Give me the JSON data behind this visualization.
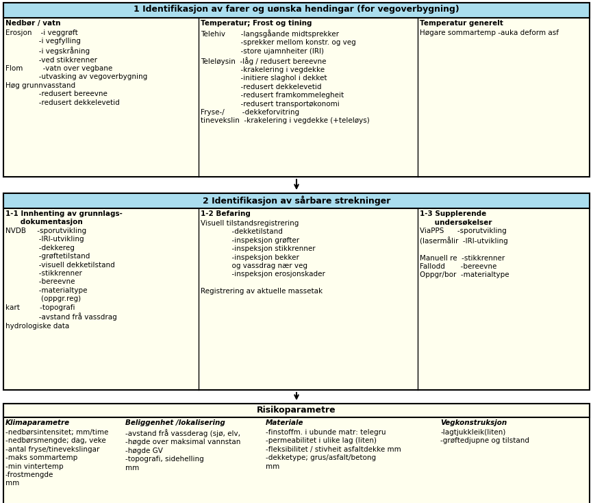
{
  "fig_width": 8.66,
  "fig_height": 7.34,
  "dpi": 100,
  "bg_color": "#ffffff",
  "light_yellow": "#ffffee",
  "light_blue": "#aaddee",
  "border_color": "#000000",
  "section1_title": "1 Identifikasjon av farer og uønska hendingar (for vegoverbygning)",
  "section2_title": "2 Identifikasjon av sårbare strekninger",
  "section3_title": "Risikoparametre",
  "col1_header": "Nedbør / vatn",
  "col1_content": "Erosjon    -i veggrøft\n               -i vegfylling\n               -i vegskråning\n               -ved stikkrenner\nFlom         -vatn over vegbane\n               -utvasking av vegoverbygning\nHøg grunnvasstand\n               -redusert bereevne\n               -redusert dekkelevetid",
  "col2_header": "Temperatur; Frost og tining",
  "col2_content": "Telehiv       -langsgåande midtsprekker\n                  -sprekker mellom konstr. og veg\n                  -store ujamnheiter (IRI)\nTeleløysin  -låg / redusert bereevne\n                  -krakelering i vegdekke\n                  -initiere slaghol i dekket\n                  -redusert dekkelevetid\n                  -redusert framkommelegheit\n                  -redusert transportøkonomi\nFryse-/        -dekkeforvitring\ntinevekslin  -krakelering i vegdekke (+teleløys)",
  "col3_header": "Temperatur generelt",
  "col3_content": "Høgare sommartemp -auka deform asf",
  "s2_col1_header": "1-1 Innhenting av grunnlags-\n      dokumentasjon",
  "s2_col1_content": "NVDB     -sporutvikling\n               -IRI-utvikling\n               -dekkereg\n               -grøftetilstand\n               -visuell dekketilstand\n               -stikkrenner\n               -bereevne\n               -materialtype\n                (oppgr.reg)\nkart         -topografi\n               -avstand frå vassdrag\nhydrologiske data",
  "s2_col2_header": "1-2 Befaring",
  "s2_col2_content": "Visuell tilstandsregistrering\n              -dekketilstand\n              -inspeksjon grøfter\n              -inspeksjon stikkrenner\n              -inspeksjon bekker\n              og vassdrag nær veg\n              -inspeksjon erosjonskader\n\nRegistrering av aktuelle massetak",
  "s2_col3_header": "1-3 Supplerende\n      undersøkelser",
  "s2_col3_content": "ViaPPS      -sporutvikling\n(lasermålir  -IRI-utvikling\n\nManuell re  -stikkrenner\nFallodd       -bereevne\nOppgr/bor  -materialtype",
  "s3_col1_header": "Klimaparametre",
  "s3_col1_content": "-nedbørsintensitet; mm/time\n-nedbørsmengde; dag, veke\n-antal fryse/tinevekslingar\n-maks sommartemp\n-min vintertemp\n-frostmengde\nmm",
  "s3_col2_header": "Beliggenhet /lokalisering",
  "s3_col2_content": "-avstand frå vassderag (sjø, elv,\n-høgde over maksimal vannstan\n-høgde GV\n-topografi, sidehelling\nmm",
  "s3_col3_header": "Materiale",
  "s3_col3_content": "-finstoffm. i ubunde matr: telegru\n-permeabilitet i ulike lag (liten)\n-fleksibilitet / stivheit asfaltdekke mm\n-dekketype; grus/asfalt/betong\nmm",
  "s3_col4_header": "Vegkonstruksjon",
  "s3_col4_content": "-lagtjukkleik(liten)\n-grøftedjupne og tilstand"
}
